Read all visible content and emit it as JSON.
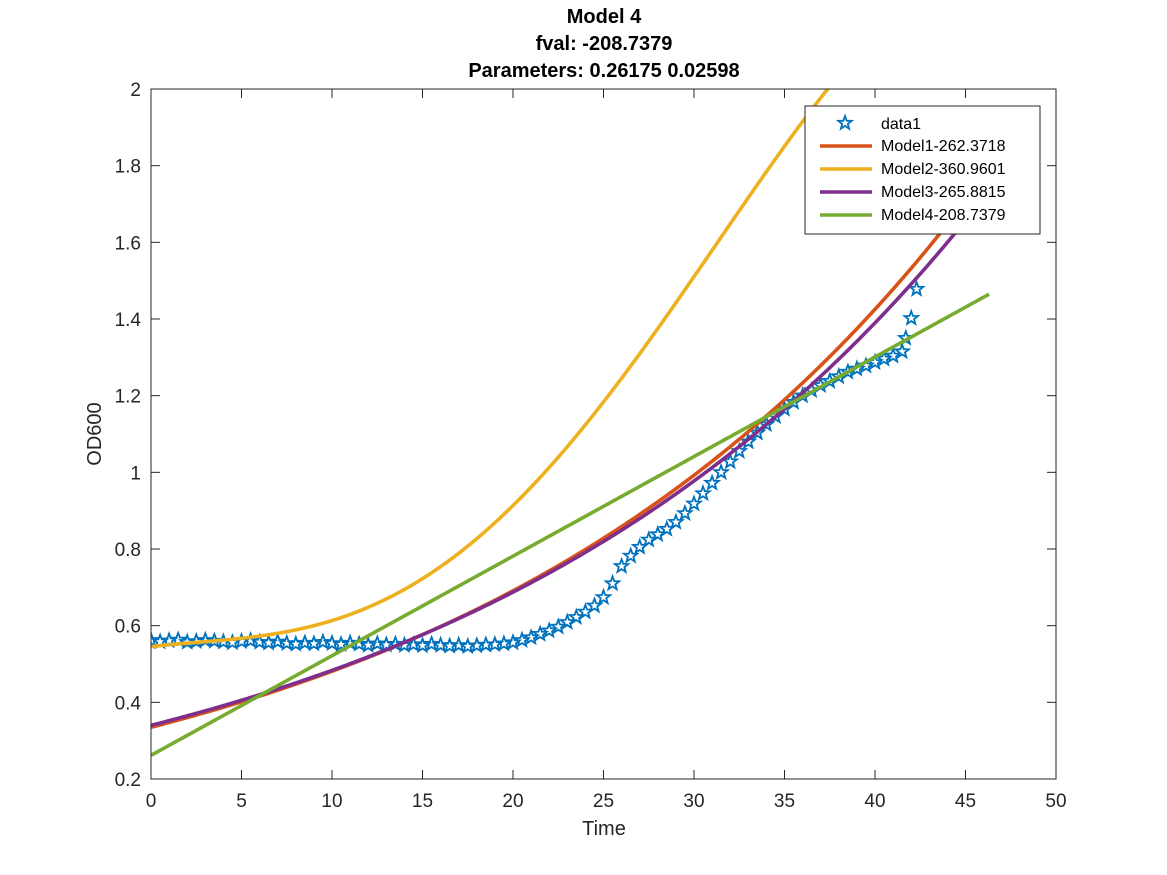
{
  "chart_data": {
    "type": "line",
    "title_lines": [
      "Model 4",
      "fval: -208.7379",
      "Parameters: 0.26175     0.02598"
    ],
    "xlabel": "Time",
    "ylabel": "OD600",
    "xlim": [
      0,
      50
    ],
    "ylim": [
      0.2,
      2
    ],
    "xticks": [
      "0",
      "5",
      "10",
      "15",
      "20",
      "25",
      "30",
      "35",
      "40",
      "45",
      "50"
    ],
    "yticks": [
      "0.2",
      "0.4",
      "0.6",
      "0.8",
      "1",
      "1.2",
      "1.4",
      "1.6",
      "1.8",
      "2"
    ],
    "grid": false,
    "legend_position": "top-right",
    "series": [
      {
        "name": "data1",
        "kind": "markers",
        "marker": "star",
        "color": "#0072BD",
        "points": [
          [
            0,
            0.562
          ],
          [
            0.5,
            0.558
          ],
          [
            1,
            0.561
          ],
          [
            1.5,
            0.563
          ],
          [
            2,
            0.557
          ],
          [
            2.5,
            0.559
          ],
          [
            3,
            0.562
          ],
          [
            3.5,
            0.56
          ],
          [
            4,
            0.558
          ],
          [
            4.5,
            0.556
          ],
          [
            5,
            0.559
          ],
          [
            5.5,
            0.561
          ],
          [
            6,
            0.557
          ],
          [
            6.5,
            0.555
          ],
          [
            7,
            0.558
          ],
          [
            7.5,
            0.554
          ],
          [
            8,
            0.552
          ],
          [
            8.5,
            0.555
          ],
          [
            9,
            0.553
          ],
          [
            9.5,
            0.557
          ],
          [
            10,
            0.554
          ],
          [
            10.5,
            0.551
          ],
          [
            11,
            0.555
          ],
          [
            11.5,
            0.552
          ],
          [
            12,
            0.549
          ],
          [
            12.5,
            0.553
          ],
          [
            13,
            0.55
          ],
          [
            13.5,
            0.552
          ],
          [
            14,
            0.549
          ],
          [
            14.5,
            0.551
          ],
          [
            15,
            0.548
          ],
          [
            15.5,
            0.552
          ],
          [
            16,
            0.549
          ],
          [
            16.5,
            0.547
          ],
          [
            17,
            0.549
          ],
          [
            17.5,
            0.546
          ],
          [
            18,
            0.548
          ],
          [
            18.5,
            0.55
          ],
          [
            19,
            0.551
          ],
          [
            19.5,
            0.553
          ],
          [
            20,
            0.556
          ],
          [
            20.5,
            0.562
          ],
          [
            21,
            0.569
          ],
          [
            21.5,
            0.578
          ],
          [
            22,
            0.587
          ],
          [
            22.5,
            0.597
          ],
          [
            23,
            0.609
          ],
          [
            23.5,
            0.622
          ],
          [
            24,
            0.636
          ],
          [
            24.5,
            0.652
          ],
          [
            25,
            0.674
          ],
          [
            25.5,
            0.71
          ],
          [
            26,
            0.755
          ],
          [
            26.5,
            0.782
          ],
          [
            27,
            0.805
          ],
          [
            27.5,
            0.824
          ],
          [
            28,
            0.838
          ],
          [
            28.5,
            0.852
          ],
          [
            29,
            0.87
          ],
          [
            29.5,
            0.893
          ],
          [
            30,
            0.918
          ],
          [
            30.5,
            0.945
          ],
          [
            31,
            0.972
          ],
          [
            31.5,
            1.0
          ],
          [
            32,
            1.028
          ],
          [
            32.5,
            1.055
          ],
          [
            33,
            1.08
          ],
          [
            33.5,
            1.103
          ],
          [
            34,
            1.125
          ],
          [
            34.5,
            1.146
          ],
          [
            35,
            1.165
          ],
          [
            35.5,
            1.183
          ],
          [
            36,
            1.2
          ],
          [
            36.5,
            1.214
          ],
          [
            37,
            1.227
          ],
          [
            37.5,
            1.238
          ],
          [
            38,
            1.25
          ],
          [
            38.5,
            1.262
          ],
          [
            39,
            1.27
          ],
          [
            39.5,
            1.278
          ],
          [
            40,
            1.287
          ],
          [
            40.5,
            1.296
          ],
          [
            41,
            1.304
          ],
          [
            41.5,
            1.315
          ],
          [
            41.7,
            1.35
          ],
          [
            42.0,
            1.402
          ],
          [
            42.3,
            1.478
          ]
        ]
      },
      {
        "name": "Model1-262.3718",
        "kind": "line",
        "color": "#D95319",
        "x_range": [
          0,
          45.5
        ],
        "model": "exp",
        "params": [
          0.335,
          0.0362
        ]
      },
      {
        "name": "Model2-360.9601",
        "kind": "line",
        "color": "#EDB120",
        "x_range": [
          0,
          43.5
        ],
        "model": "poly",
        "coefficients": [
          0.54508,
          0.005624,
          -0.0006734,
          9.305e-05,
          -1.37e-06
        ]
      },
      {
        "name": "Model3-265.8815",
        "kind": "line",
        "color": "#7E2F8E",
        "x_range": [
          0,
          45.5
        ],
        "model": "exp",
        "params": [
          0.34,
          0.0352
        ]
      },
      {
        "name": "Model4-208.7379",
        "kind": "line",
        "color": "#77AC30",
        "x_range": [
          0,
          46.3
        ],
        "model": "linear",
        "params": [
          0.26175,
          0.02598
        ]
      }
    ]
  }
}
